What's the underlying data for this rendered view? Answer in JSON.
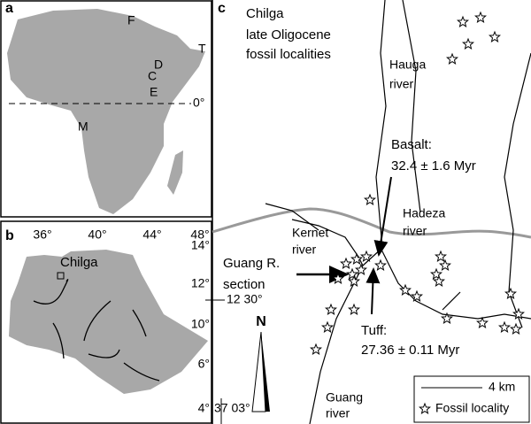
{
  "panel_a": {
    "label": "a",
    "letters": [
      "F",
      "T",
      "D",
      "C",
      "E",
      "M"
    ],
    "equator": "0°"
  },
  "panel_b": {
    "label": "b",
    "lon_labels": [
      "36°",
      "40°",
      "44°",
      "48°"
    ],
    "lat_labels": [
      "14°",
      "12°",
      "10°",
      "6°",
      "4°"
    ],
    "site": "Chilga"
  },
  "panel_c": {
    "label": "c",
    "title": [
      "Chilga",
      "late Oligocene",
      "fossil localities"
    ],
    "hauga": [
      "Hauga",
      "river"
    ],
    "basalt": [
      "Basalt:",
      "32.4 ± 1.6 Myr"
    ],
    "hadeza": [
      "Hadeza",
      "river"
    ],
    "kernet": [
      "Kernet",
      "river"
    ],
    "section": [
      "Guang R.",
      "section"
    ],
    "tuff": [
      "Tuff:",
      "27.36 ± 0.11 Myr"
    ],
    "guang": [
      "Guang",
      "river"
    ],
    "north": "N",
    "lat": "12 30°",
    "lon": "37 03°",
    "scale": "4 km",
    "legend": "Fossil locality"
  }
}
